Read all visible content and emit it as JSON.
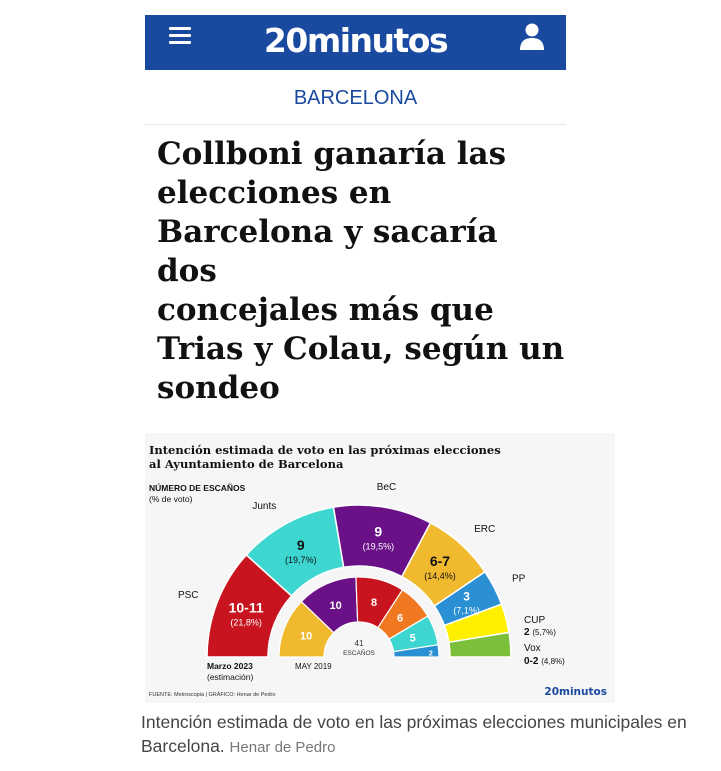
{
  "header": {
    "logo": "20minutos",
    "icons": {
      "menu": "hamburger-menu-icon",
      "user": "user-profile-icon"
    },
    "background": "#1a4aa0"
  },
  "section": {
    "label": "BARCELONA"
  },
  "article": {
    "headline_lines": [
      "Collboni ganaría las",
      "elecciones en",
      "Barcelona y sacaría dos",
      "concejales más que",
      "Trias y Colau, según un",
      "sondeo"
    ]
  },
  "infographic": {
    "title_lines": [
      "Intención estimada de voto en las próximas elecciones",
      "al Ayuntamiento de Barcelona"
    ],
    "subtitle": "NÚMERO DE ESCAÑOS",
    "subtitle2": "(% de voto)",
    "outer_label": "Marzo 2023",
    "outer_label_sub": "(estimación)",
    "inner_label": "MAY 2019",
    "inner_total": "41",
    "inner_total_label": "ESCAÑOS",
    "source": "FUENTE: Metroscopia  |  GRÁFICO: Henar de Pedro",
    "brand": "20minutos"
  },
  "chart_data": {
    "type": "pie",
    "subtype": "parliament-semicircle",
    "title": "Intención estimada de voto en las próximas elecciones al Ayuntamiento de Barcelona",
    "series": [
      {
        "name": "Marzo 2023",
        "slices": [
          {
            "party": "PSC",
            "seats": "10-11",
            "vote": "(21,8%)",
            "vote_pct": 21.8,
            "color": "#c8141e"
          },
          {
            "party": "Junts",
            "seats": "9",
            "vote": "(19,7%)",
            "vote_pct": 19.7,
            "color": "#3dd6d0"
          },
          {
            "party": "BeC",
            "seats": "9",
            "vote": "(19,5%)",
            "vote_pct": 19.5,
            "color": "#6b1187"
          },
          {
            "party": "ERC",
            "seats": "6-7",
            "vote": "(14,4%)",
            "vote_pct": 14.4,
            "color": "#f0b92e"
          },
          {
            "party": "PP",
            "seats": "3",
            "vote": "(7,1%)",
            "vote_pct": 7.1,
            "color": "#2b8fd4"
          },
          {
            "party": "CUP",
            "seats": "2",
            "vote": "(5,7%)",
            "vote_pct": 5.7,
            "color": "#fff000"
          },
          {
            "party": "Vox",
            "seats": "0-2",
            "vote": "(4,8%)",
            "vote_pct": 4.8,
            "color": "#7cbf3a"
          }
        ]
      },
      {
        "name": "MAY 2019",
        "slices": [
          {
            "seats": "10",
            "value": 10,
            "color": "#f0b92e"
          },
          {
            "seats": "10",
            "value": 10,
            "color": "#6b1187"
          },
          {
            "seats": "8",
            "value": 8,
            "color": "#c8141e"
          },
          {
            "seats": "6",
            "value": 6,
            "color": "#f07820"
          },
          {
            "seats": "5",
            "value": 5,
            "color": "#3dd6d0"
          },
          {
            "seats": "2",
            "value": 2,
            "color": "#2b8fd4"
          }
        ]
      }
    ]
  },
  "caption": {
    "text": "Intención estimada de voto en las próximas elecciones municipales en Barcelona.",
    "credit": "Henar de Pedro"
  }
}
